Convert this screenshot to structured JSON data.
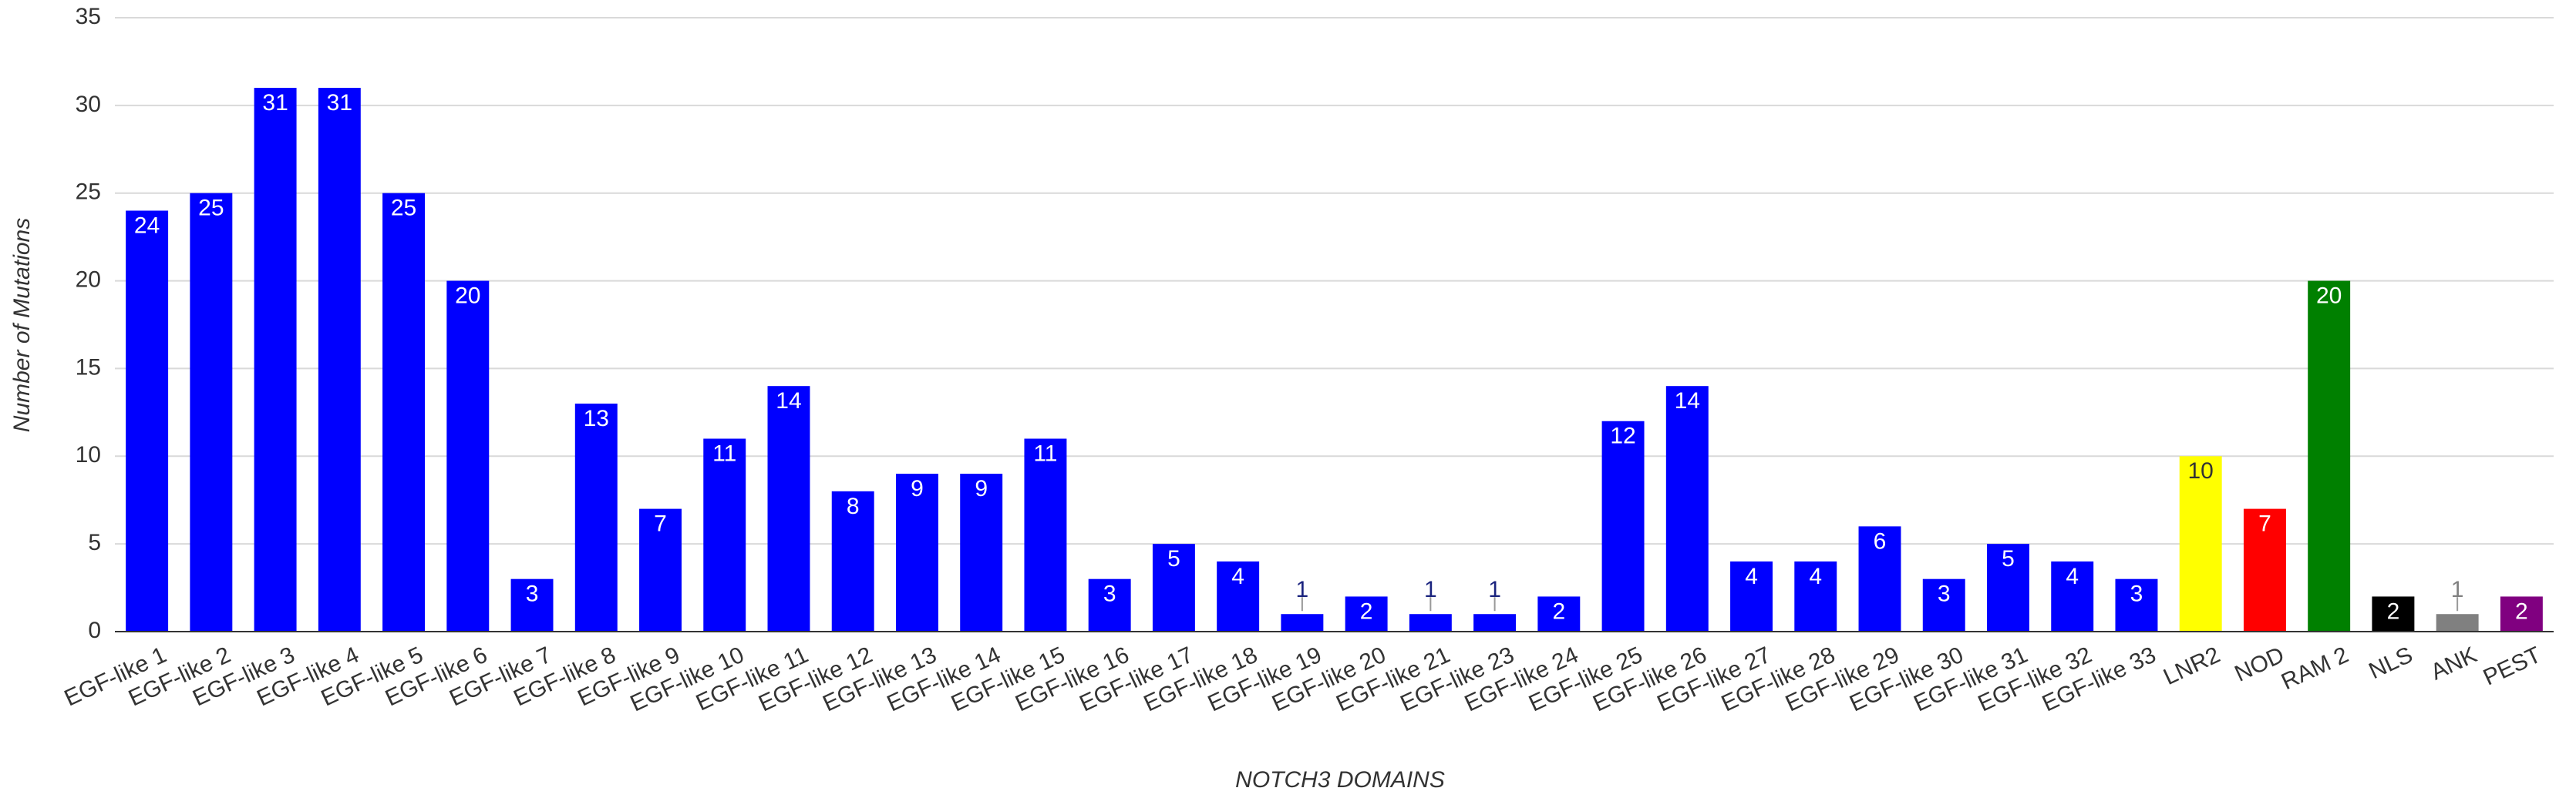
{
  "chart_data": {
    "type": "bar",
    "x_label": "NOTCH3 DOMAINS",
    "y_label": "Number of Mutations",
    "categories": [
      "EGF-like 1",
      "EGF-like 2",
      "EGF-like 3",
      "EGF-like 4",
      "EGF-like 5",
      "EGF-like 6",
      "EGF-like 7",
      "EGF-like 8",
      "EGF-like 9",
      "EGF-like 10",
      "EGF-like 11",
      "EGF-like 12",
      "EGF-like 13",
      "EGF-like 14",
      "EGF-like 15",
      "EGF-like 16",
      "EGF-like 17",
      "EGF-like 18",
      "EGF-like 19",
      "EGF-like 20",
      "EGF-like 21",
      "EGF-like 23",
      "EGF-like 24",
      "EGF-like 25",
      "EGF-like 26",
      "EGF-like 27",
      "EGF-like 28",
      "EGF-like 29",
      "EGF-like 30",
      "EGF-like 31",
      "EGF-like 32",
      "EGF-like 33",
      "LNR2",
      "NOD",
      "RAM 2",
      "NLS",
      "ANK",
      "PEST"
    ],
    "values": [
      24,
      25,
      31,
      31,
      25,
      20,
      3,
      13,
      7,
      11,
      14,
      8,
      9,
      9,
      11,
      3,
      5,
      4,
      1,
      2,
      1,
      1,
      2,
      12,
      14,
      4,
      4,
      6,
      3,
      5,
      4,
      3,
      10,
      7,
      20,
      2,
      1,
      2
    ],
    "colors": [
      "#0000ff",
      "#0000ff",
      "#0000ff",
      "#0000ff",
      "#0000ff",
      "#0000ff",
      "#0000ff",
      "#0000ff",
      "#0000ff",
      "#0000ff",
      "#0000ff",
      "#0000ff",
      "#0000ff",
      "#0000ff",
      "#0000ff",
      "#0000ff",
      "#0000ff",
      "#0000ff",
      "#0000ff",
      "#0000ff",
      "#0000ff",
      "#0000ff",
      "#0000ff",
      "#0000ff",
      "#0000ff",
      "#0000ff",
      "#0000ff",
      "#0000ff",
      "#0000ff",
      "#0000ff",
      "#0000ff",
      "#0000ff",
      "#ffff00",
      "#ff0000",
      "#008000",
      "#000000",
      "#808080",
      "#800080"
    ],
    "ylim": [
      0,
      35
    ],
    "yticks": [
      0,
      5,
      10,
      15,
      20,
      25,
      30,
      35
    ],
    "grid": true
  }
}
